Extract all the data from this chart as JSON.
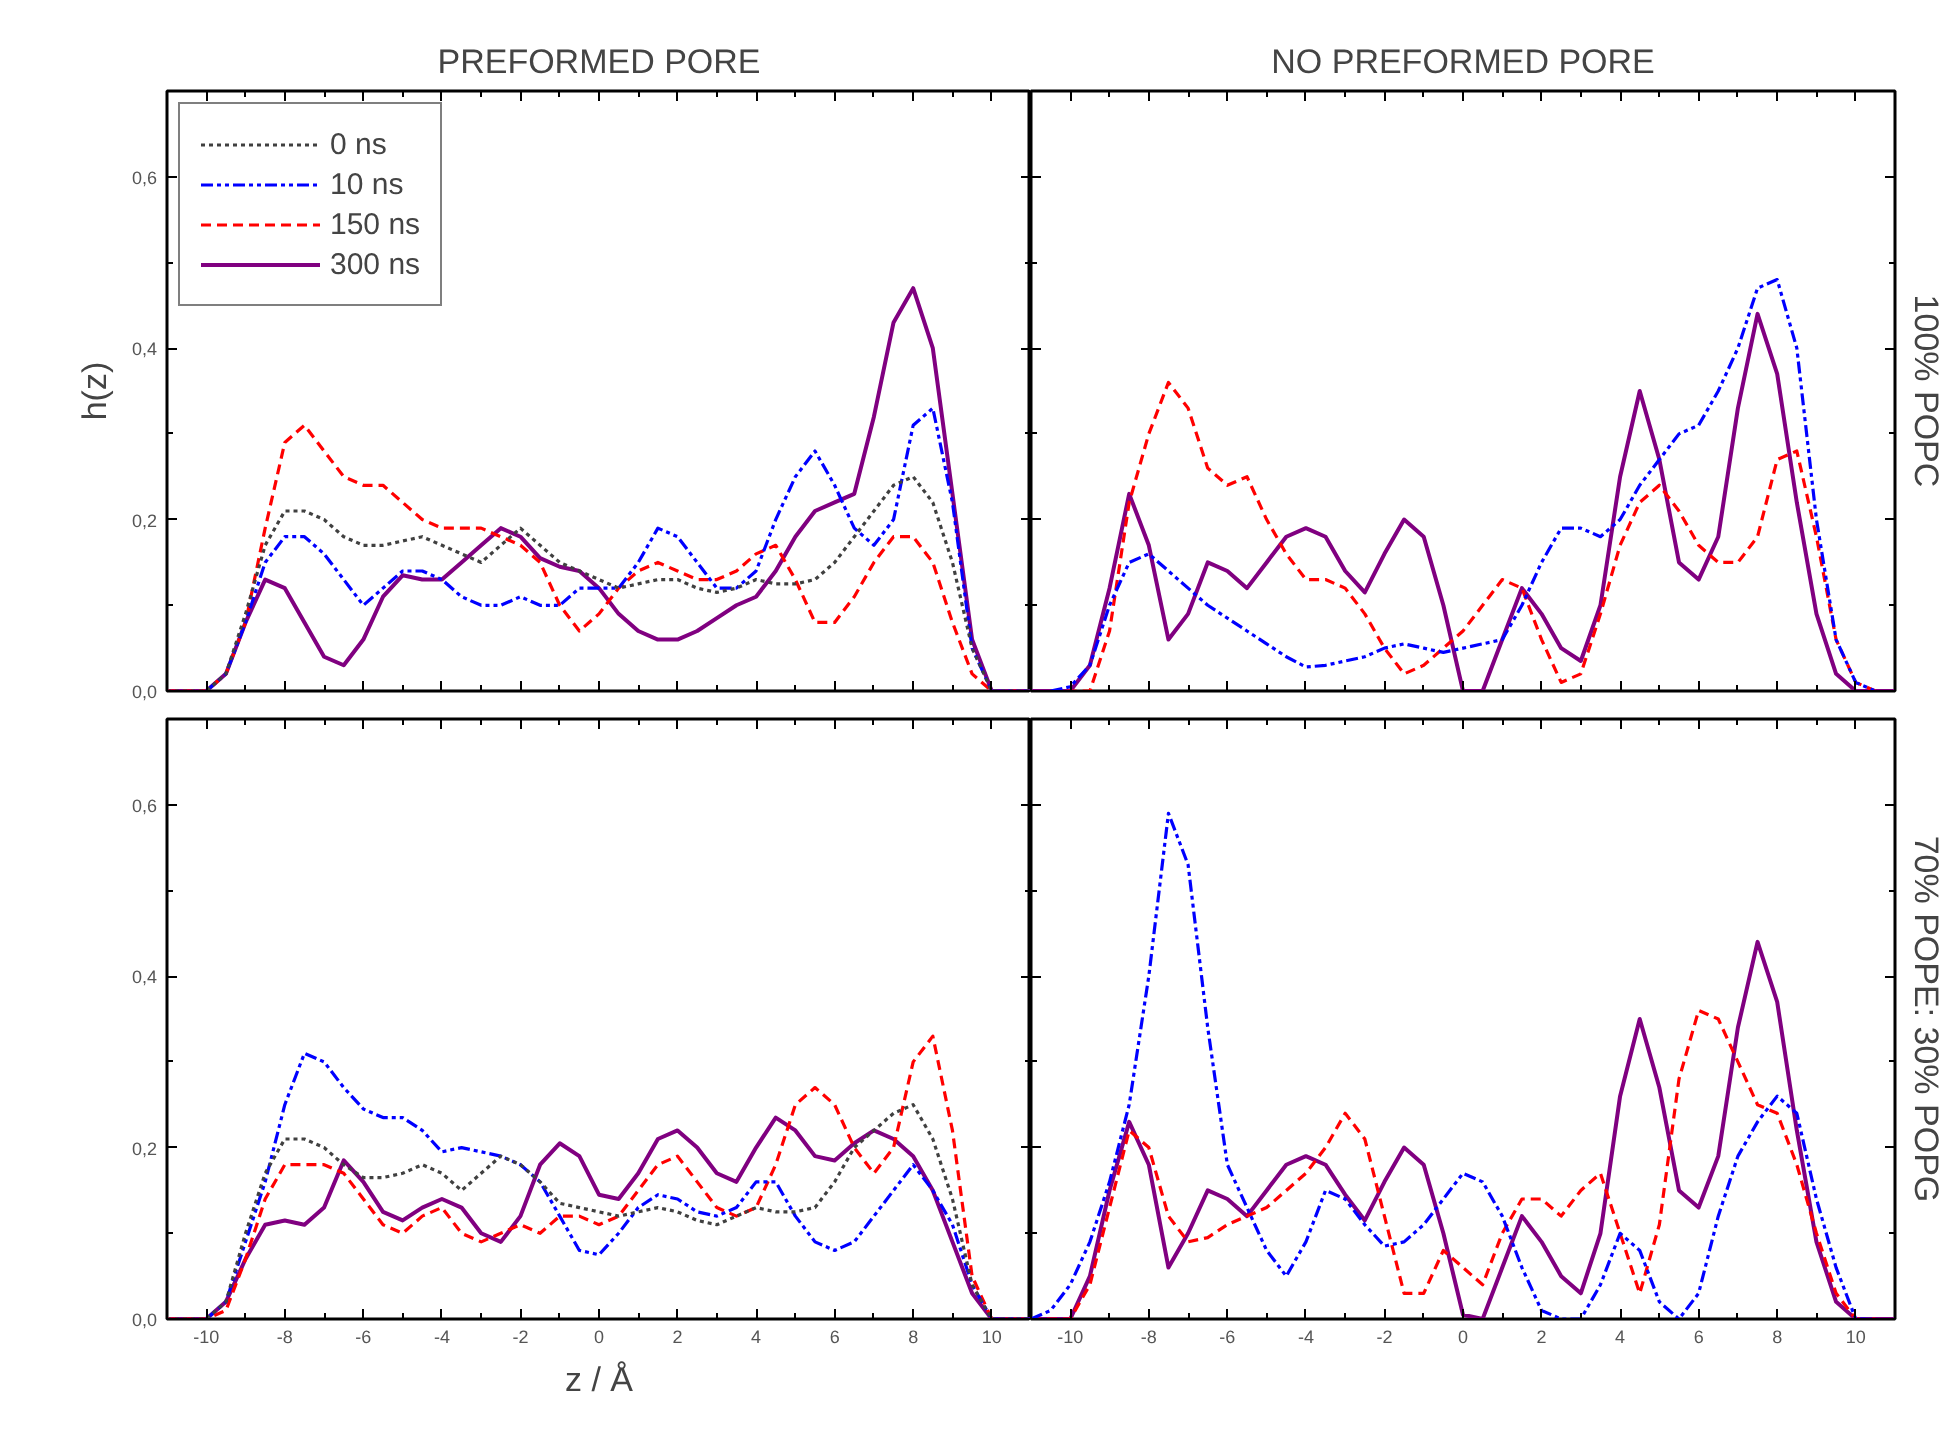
{
  "chart_data": [
    {
      "type": "line",
      "title": "PREFORMED PORE",
      "ylabel": "h(z)",
      "x": [
        -11,
        -10.5,
        -10,
        -9.5,
        -9,
        -8.5,
        -8,
        -7.5,
        -7,
        -6.5,
        -6,
        -5.5,
        -5,
        -4.5,
        -4,
        -3.5,
        -3,
        -2.5,
        -2,
        -1.5,
        -1,
        -0.5,
        0,
        0.5,
        1,
        1.5,
        2,
        2.5,
        3,
        3.5,
        4,
        4.5,
        5,
        5.5,
        6,
        6.5,
        7,
        7.5,
        8,
        8.5,
        9,
        9.5,
        10,
        10.5,
        11
      ],
      "xlim": [
        -11,
        11
      ],
      "ylim": [
        0,
        0.7
      ],
      "xticks": [
        {
          "value": -10,
          "label": null
        },
        {
          "value": -8,
          "label": null
        },
        {
          "value": -6,
          "label": null
        },
        {
          "value": -4,
          "label": null
        },
        {
          "value": -2,
          "label": null
        },
        {
          "value": 0,
          "label": null
        },
        {
          "value": 2,
          "label": null
        },
        {
          "value": 4,
          "label": null
        },
        {
          "value": 6,
          "label": null
        },
        {
          "value": 8,
          "label": null
        },
        {
          "value": 10,
          "label": null
        }
      ],
      "yticks": [
        {
          "value": 0,
          "label": "0,0"
        },
        {
          "value": 0.2,
          "label": "0,2"
        },
        {
          "value": 0.4,
          "label": "0,4"
        },
        {
          "value": 0.6,
          "label": "0,6"
        }
      ],
      "tick_labels": "y",
      "grid": false,
      "legend": "top left",
      "series": [
        {
          "name": "0 ns",
          "color": "#404040",
          "line_style": "dotted",
          "values": [
            0,
            0,
            0,
            0.02,
            0.09,
            0.17,
            0.21,
            0.21,
            0.2,
            0.18,
            0.17,
            0.17,
            0.175,
            0.18,
            0.17,
            0.16,
            0.15,
            0.17,
            0.19,
            0.17,
            0.15,
            0.14,
            0.13,
            0.12,
            0.125,
            0.13,
            0.13,
            0.12,
            0.115,
            0.12,
            0.13,
            0.125,
            0.125,
            0.13,
            0.15,
            0.18,
            0.21,
            0.24,
            0.25,
            0.22,
            0.15,
            0.05,
            0,
            0,
            0
          ]
        },
        {
          "name": "10 ns",
          "color": "#0000ff",
          "line_style": "dashdot",
          "values": [
            null,
            null,
            0,
            0.02,
            0.08,
            0.15,
            0.18,
            0.18,
            0.16,
            0.13,
            0.1,
            0.12,
            0.14,
            0.14,
            0.13,
            0.11,
            0.1,
            0.1,
            0.11,
            0.1,
            0.1,
            0.12,
            0.12,
            0.12,
            0.15,
            0.19,
            0.18,
            0.15,
            0.12,
            0.12,
            0.14,
            0.2,
            0.25,
            0.28,
            0.24,
            0.19,
            0.17,
            0.2,
            0.31,
            0.33,
            0.22,
            0.05,
            0,
            0,
            0
          ]
        },
        {
          "name": "150 ns",
          "color": "#ff0000",
          "line_style": "dashed",
          "values": [
            0,
            0,
            0,
            0.02,
            0.08,
            0.19,
            0.29,
            0.31,
            0.28,
            0.25,
            0.24,
            0.24,
            0.22,
            0.2,
            0.19,
            0.19,
            0.19,
            0.18,
            0.17,
            0.15,
            0.1,
            0.07,
            0.09,
            0.12,
            0.14,
            0.15,
            0.14,
            0.13,
            0.13,
            0.14,
            0.16,
            0.17,
            0.13,
            0.08,
            0.08,
            0.11,
            0.15,
            0.18,
            0.18,
            0.15,
            0.08,
            0.02,
            0,
            0,
            0
          ]
        },
        {
          "name": "300 ns",
          "color": "#800080",
          "line_style": "solid",
          "values": [
            0,
            0,
            0,
            0.02,
            0.08,
            0.13,
            0.12,
            0.08,
            0.04,
            0.03,
            0.06,
            0.11,
            0.135,
            0.13,
            0.13,
            0.15,
            0.17,
            0.19,
            0.18,
            0.155,
            0.145,
            0.14,
            0.12,
            0.09,
            0.07,
            0.06,
            0.06,
            0.07,
            0.085,
            0.1,
            0.11,
            0.14,
            0.18,
            0.21,
            0.22,
            0.23,
            0.32,
            0.43,
            0.47,
            0.4,
            0.23,
            0.06,
            0,
            0,
            0
          ]
        }
      ]
    },
    {
      "type": "line",
      "title": "NO PREFORMED PORE",
      "y2label": "100% POPC",
      "x": [
        -11,
        -10.5,
        -10,
        -9.5,
        -9,
        -8.5,
        -8,
        -7.5,
        -7,
        -6.5,
        -6,
        -5.5,
        -5,
        -4.5,
        -4,
        -3.5,
        -3,
        -2.5,
        -2,
        -1.5,
        -1,
        -0.5,
        0,
        0.5,
        1,
        1.5,
        2,
        2.5,
        3,
        3.5,
        4,
        4.5,
        5,
        5.5,
        6,
        6.5,
        7,
        7.5,
        8,
        8.5,
        9,
        9.5,
        10,
        10.5,
        11
      ],
      "xlim": [
        -11,
        11
      ],
      "ylim": [
        0,
        0.7
      ],
      "xticks": [
        {
          "value": -10,
          "label": null
        },
        {
          "value": -8,
          "label": null
        },
        {
          "value": -6,
          "label": null
        },
        {
          "value": -4,
          "label": null
        },
        {
          "value": -2,
          "label": null
        },
        {
          "value": 0,
          "label": null
        },
        {
          "value": 2,
          "label": null
        },
        {
          "value": 4,
          "label": null
        },
        {
          "value": 6,
          "label": null
        },
        {
          "value": 8,
          "label": null
        },
        {
          "value": 10,
          "label": null
        }
      ],
      "yticks": [
        {
          "value": 0,
          "label": null
        },
        {
          "value": 0.2,
          "label": null
        },
        {
          "value": 0.4,
          "label": null
        },
        {
          "value": 0.6,
          "label": null
        }
      ],
      "tick_labels": false,
      "grid": false,
      "series": [
        {
          "color": "#0000ff",
          "line_style": "dashdot",
          "values": [
            null,
            0,
            0.005,
            0.03,
            0.1,
            0.15,
            0.16,
            0.14,
            0.12,
            0.1,
            0.085,
            0.07,
            0.055,
            0.04,
            0.028,
            0.03,
            0.035,
            0.04,
            0.05,
            0.055,
            0.05,
            0.045,
            0.05,
            0.055,
            0.06,
            0.1,
            0.15,
            0.19,
            0.19,
            0.18,
            0.2,
            0.24,
            0.27,
            0.3,
            0.31,
            0.35,
            0.4,
            0.47,
            0.48,
            0.4,
            0.2,
            0.06,
            0.01,
            0,
            null
          ]
        },
        {
          "color": "#ff0000",
          "line_style": "dashed",
          "values": [
            null,
            0,
            0,
            0,
            0.07,
            0.22,
            0.3,
            0.36,
            0.33,
            0.26,
            0.24,
            0.25,
            0.2,
            0.16,
            0.13,
            0.13,
            0.12,
            0.09,
            0.05,
            0.02,
            0.03,
            0.05,
            0.07,
            0.1,
            0.13,
            0.12,
            0.06,
            0.01,
            0.02,
            0.09,
            0.17,
            0.22,
            0.24,
            0.21,
            0.17,
            0.15,
            0.15,
            0.18,
            0.27,
            0.28,
            0.18,
            0.06,
            0.01,
            0,
            null
          ]
        },
        {
          "color": "#800080",
          "line_style": "solid",
          "values": [
            0,
            0,
            0,
            0.03,
            0.12,
            0.23,
            0.17,
            0.06,
            0.09,
            0.15,
            0.14,
            0.12,
            0.15,
            0.18,
            0.19,
            0.18,
            0.14,
            0.115,
            0.16,
            0.2,
            0.18,
            0.1,
            0,
            0,
            0.06,
            0.12,
            0.09,
            0.05,
            0.035,
            0.1,
            0.25,
            0.35,
            0.27,
            0.15,
            0.13,
            0.18,
            0.33,
            0.44,
            0.37,
            0.22,
            0.09,
            0.02,
            0,
            0,
            0
          ]
        }
      ]
    },
    {
      "type": "line",
      "xlabel": "z / Å",
      "x": [
        -11,
        -10.5,
        -10,
        -9.5,
        -9,
        -8.5,
        -8,
        -7.5,
        -7,
        -6.5,
        -6,
        -5.5,
        -5,
        -4.5,
        -4,
        -3.5,
        -3,
        -2.5,
        -2,
        -1.5,
        -1,
        -0.5,
        0,
        0.5,
        1,
        1.5,
        2,
        2.5,
        3,
        3.5,
        4,
        4.5,
        5,
        5.5,
        6,
        6.5,
        7,
        7.5,
        8,
        8.5,
        9,
        9.5,
        10,
        10.5,
        11
      ],
      "xlim": [
        -11,
        11
      ],
      "ylim": [
        0,
        0.7
      ],
      "xticks": [
        {
          "value": -10,
          "label": "-10"
        },
        {
          "value": -8,
          "label": "-8"
        },
        {
          "value": -6,
          "label": "-6"
        },
        {
          "value": -4,
          "label": "-4"
        },
        {
          "value": -2,
          "label": "-2"
        },
        {
          "value": 0,
          "label": "0"
        },
        {
          "value": 2,
          "label": "2"
        },
        {
          "value": 4,
          "label": "4"
        },
        {
          "value": 6,
          "label": "6"
        },
        {
          "value": 8,
          "label": "8"
        },
        {
          "value": 10,
          "label": "10"
        }
      ],
      "yticks": [
        {
          "value": 0,
          "label": "0,0"
        },
        {
          "value": 0.2,
          "label": "0,2"
        },
        {
          "value": 0.4,
          "label": "0,4"
        },
        {
          "value": 0.6,
          "label": "0,6"
        }
      ],
      "grid": false,
      "series": [
        {
          "color": "#404040",
          "line_style": "dotted",
          "values": [
            0,
            0,
            0,
            0.02,
            0.1,
            0.17,
            0.21,
            0.21,
            0.2,
            0.18,
            0.165,
            0.165,
            0.17,
            0.18,
            0.17,
            0.15,
            0.17,
            0.19,
            0.18,
            0.16,
            0.135,
            0.13,
            0.125,
            0.12,
            0.125,
            0.13,
            0.125,
            0.115,
            0.11,
            0.12,
            0.13,
            0.125,
            0.125,
            0.13,
            0.16,
            0.2,
            0.22,
            0.24,
            0.25,
            0.21,
            0.14,
            0.04,
            0,
            0,
            0
          ]
        },
        {
          "color": "#0000ff",
          "line_style": "dashdot",
          "values": [
            null,
            null,
            0,
            0.02,
            0.09,
            0.16,
            0.25,
            0.31,
            0.3,
            0.27,
            0.245,
            0.235,
            0.235,
            0.22,
            0.195,
            0.2,
            0.195,
            0.19,
            0.18,
            0.16,
            0.12,
            0.08,
            0.075,
            0.1,
            0.13,
            0.145,
            0.14,
            0.125,
            0.12,
            0.13,
            0.16,
            0.16,
            0.12,
            0.09,
            0.08,
            0.09,
            0.12,
            0.15,
            0.18,
            0.15,
            0.11,
            0.04,
            0,
            0,
            0
          ]
        },
        {
          "color": "#ff0000",
          "line_style": "dashed",
          "values": [
            0,
            0,
            0,
            0.01,
            0.07,
            0.14,
            0.18,
            0.18,
            0.18,
            0.17,
            0.14,
            0.11,
            0.1,
            0.12,
            0.13,
            0.1,
            0.09,
            0.1,
            0.11,
            0.1,
            0.12,
            0.12,
            0.11,
            0.12,
            0.15,
            0.18,
            0.19,
            0.16,
            0.13,
            0.12,
            0.13,
            0.18,
            0.25,
            0.27,
            0.25,
            0.2,
            0.17,
            0.2,
            0.3,
            0.33,
            0.22,
            0.05,
            0,
            0,
            0
          ]
        },
        {
          "color": "#800080",
          "line_style": "solid",
          "values": [
            0,
            0,
            0,
            0.02,
            0.07,
            0.11,
            0.115,
            0.11,
            0.13,
            0.185,
            0.16,
            0.125,
            0.115,
            0.13,
            0.14,
            0.13,
            0.1,
            0.09,
            0.12,
            0.18,
            0.205,
            0.19,
            0.145,
            0.14,
            0.17,
            0.21,
            0.22,
            0.2,
            0.17,
            0.16,
            0.2,
            0.235,
            0.22,
            0.19,
            0.185,
            0.205,
            0.22,
            0.21,
            0.19,
            0.15,
            0.09,
            0.03,
            0,
            0,
            0
          ]
        }
      ]
    },
    {
      "type": "line",
      "y2label": "70% POPE: 30% POPG",
      "x": [
        -11,
        -10.5,
        -10,
        -9.5,
        -9,
        -8.5,
        -8,
        -7.5,
        -7,
        -6.5,
        -6,
        -5.5,
        -5,
        -4.5,
        -4,
        -3.5,
        -3,
        -2.5,
        -2,
        -1.5,
        -1,
        -0.5,
        0,
        0.5,
        1,
        1.5,
        2,
        2.5,
        3,
        3.5,
        4,
        4.5,
        5,
        5.5,
        6,
        6.5,
        7,
        7.5,
        8,
        8.5,
        9,
        9.5,
        10,
        10.5,
        11
      ],
      "xlim": [
        -11,
        11
      ],
      "ylim": [
        0,
        0.7
      ],
      "xticks": [
        {
          "value": -10,
          "label": "-10"
        },
        {
          "value": -8,
          "label": "-8"
        },
        {
          "value": -6,
          "label": "-6"
        },
        {
          "value": -4,
          "label": "-4"
        },
        {
          "value": -2,
          "label": "-2"
        },
        {
          "value": 0,
          "label": "0"
        },
        {
          "value": 2,
          "label": "2"
        },
        {
          "value": 4,
          "label": "4"
        },
        {
          "value": 6,
          "label": "6"
        },
        {
          "value": 8,
          "label": "8"
        },
        {
          "value": 10,
          "label": "10"
        }
      ],
      "yticks": [
        {
          "value": 0,
          "label": null
        },
        {
          "value": 0.2,
          "label": null
        },
        {
          "value": 0.4,
          "label": null
        },
        {
          "value": 0.6,
          "label": null
        }
      ],
      "tick_labels": "x",
      "grid": false,
      "series": [
        {
          "color": "#0000ff",
          "line_style": "dashdot",
          "values": [
            0,
            0.01,
            0.04,
            0.09,
            0.16,
            0.25,
            0.4,
            0.59,
            0.53,
            0.34,
            0.18,
            0.13,
            0.08,
            0.05,
            0.09,
            0.15,
            0.14,
            0.11,
            0.085,
            0.09,
            0.11,
            0.14,
            0.17,
            0.16,
            0.12,
            0.06,
            0.01,
            0,
            0,
            0.04,
            0.1,
            0.08,
            0.02,
            0,
            0.03,
            0.12,
            0.19,
            0.23,
            0.26,
            0.24,
            0.14,
            0.06,
            0,
            0,
            null
          ]
        },
        {
          "color": "#ff0000",
          "line_style": "dashed",
          "values": [
            0,
            0,
            0,
            0.04,
            0.13,
            0.22,
            0.2,
            0.12,
            0.09,
            0.095,
            0.11,
            0.12,
            0.13,
            0.15,
            0.17,
            0.2,
            0.24,
            0.21,
            0.12,
            0.03,
            0.03,
            0.08,
            0.06,
            0.04,
            0.1,
            0.14,
            0.14,
            0.12,
            0.15,
            0.17,
            0.1,
            0.03,
            0.11,
            0.28,
            0.36,
            0.35,
            0.3,
            0.25,
            0.24,
            0.18,
            0.1,
            0.03,
            0,
            0,
            null
          ]
        },
        {
          "color": "#800080",
          "line_style": "solid",
          "values": [
            0,
            0,
            0,
            0.05,
            0.15,
            0.23,
            0.18,
            0.06,
            0.1,
            0.15,
            0.14,
            0.12,
            0.15,
            0.18,
            0.19,
            0.18,
            0.145,
            0.115,
            0.16,
            0.2,
            0.18,
            0.1,
            0.005,
            0,
            0.06,
            0.12,
            0.09,
            0.05,
            0.03,
            0.1,
            0.26,
            0.35,
            0.27,
            0.15,
            0.13,
            0.19,
            0.34,
            0.44,
            0.37,
            0.22,
            0.09,
            0.02,
            0,
            0,
            0
          ]
        }
      ]
    }
  ]
}
